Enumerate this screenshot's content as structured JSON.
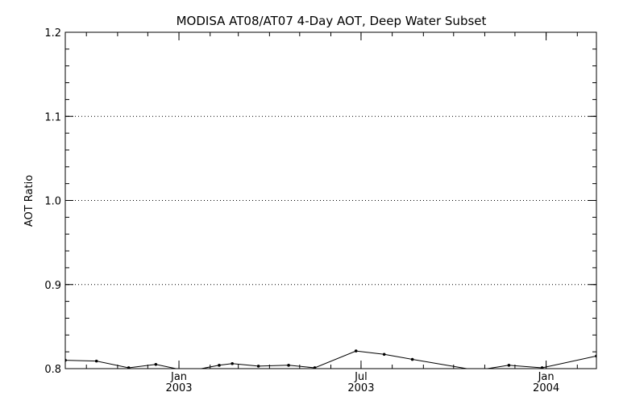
{
  "chart_data": {
    "type": "line",
    "title": "MODISA AT08/AT07 4-Day AOT, Deep Water Subset",
    "xlabel": "",
    "ylabel": "AOT Ratio",
    "ylim": [
      0.8,
      1.2
    ],
    "y_ticks": [
      "0.8",
      "0.9",
      "1.0",
      "1.1",
      "1.2"
    ],
    "xlim": [
      "2002-09-10",
      "2004-02-20"
    ],
    "x_ticks": [
      {
        "date": "2003-01-01",
        "month": "Jan",
        "year": "2003"
      },
      {
        "date": "2003-07-01",
        "month": "Jul",
        "year": "2003"
      },
      {
        "date": "2004-01-01",
        "month": "Jan",
        "year": "2004"
      }
    ],
    "grid": "horizontal dotted",
    "series": [
      {
        "x": [
          "2002-09-10",
          "2002-10-11",
          "2002-11-12",
          "2002-12-09",
          "2003-01-10",
          "2003-02-10",
          "2003-02-23",
          "2003-03-21",
          "2003-04-20",
          "2003-05-16",
          "2003-06-26",
          "2003-07-24",
          "2003-08-21",
          "2003-10-24",
          "2003-11-25",
          "2003-12-28",
          "2004-02-20"
        ],
        "values": [
          0.81,
          0.809,
          0.801,
          0.805,
          0.797,
          0.804,
          0.806,
          0.803,
          0.804,
          0.801,
          0.821,
          0.817,
          0.811,
          0.798,
          0.804,
          0.801,
          0.815
        ]
      }
    ],
    "colors": {
      "line": "#000000",
      "grid": "#000000",
      "background": "#ffffff"
    }
  }
}
